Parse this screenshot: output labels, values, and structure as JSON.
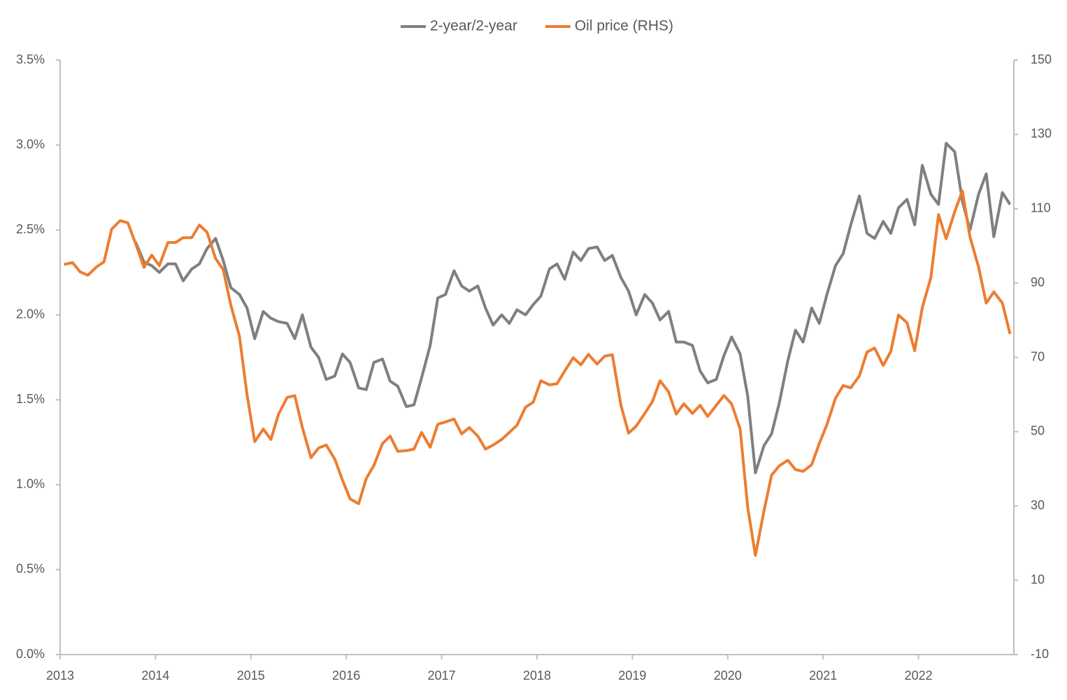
{
  "chart_data": {
    "type": "line",
    "x": [
      2013.04,
      2013.13,
      2013.21,
      2013.29,
      2013.38,
      2013.46,
      2013.54,
      2013.63,
      2013.71,
      2013.79,
      2013.88,
      2013.96,
      2014.04,
      2014.13,
      2014.21,
      2014.29,
      2014.38,
      2014.46,
      2014.54,
      2014.63,
      2014.71,
      2014.79,
      2014.88,
      2014.96,
      2015.04,
      2015.13,
      2015.21,
      2015.29,
      2015.38,
      2015.46,
      2015.54,
      2015.63,
      2015.71,
      2015.79,
      2015.88,
      2015.96,
      2016.04,
      2016.13,
      2016.21,
      2016.29,
      2016.38,
      2016.46,
      2016.54,
      2016.63,
      2016.71,
      2016.79,
      2016.88,
      2016.96,
      2017.04,
      2017.13,
      2017.21,
      2017.29,
      2017.38,
      2017.46,
      2017.54,
      2017.63,
      2017.71,
      2017.79,
      2017.88,
      2017.96,
      2018.04,
      2018.13,
      2018.21,
      2018.29,
      2018.38,
      2018.46,
      2018.54,
      2018.63,
      2018.71,
      2018.79,
      2018.88,
      2018.96,
      2019.04,
      2019.13,
      2019.21,
      2019.29,
      2019.38,
      2019.46,
      2019.54,
      2019.63,
      2019.71,
      2019.79,
      2019.88,
      2019.96,
      2020.04,
      2020.13,
      2020.21,
      2020.29,
      2020.38,
      2020.46,
      2020.54,
      2020.63,
      2020.71,
      2020.79,
      2020.88,
      2020.96,
      2021.04,
      2021.13,
      2021.21,
      2021.29,
      2021.38,
      2021.46,
      2021.54,
      2021.63,
      2021.71,
      2021.79,
      2021.88,
      2021.96,
      2022.04,
      2022.13,
      2022.21,
      2022.29,
      2022.38,
      2022.46,
      2022.54,
      2022.63,
      2022.71,
      2022.79,
      2022.88,
      2022.96
    ],
    "series": [
      {
        "name": "2-year/2-year",
        "color": "#7f7f7f",
        "values": [
          null,
          null,
          null,
          null,
          null,
          null,
          null,
          null,
          null,
          2.43,
          2.31,
          2.29,
          2.25,
          2.3,
          2.3,
          2.2,
          2.27,
          2.3,
          2.39,
          2.45,
          2.32,
          2.16,
          2.12,
          2.04,
          1.86,
          2.02,
          1.98,
          1.96,
          1.95,
          1.86,
          2.0,
          1.81,
          1.75,
          1.62,
          1.64,
          1.77,
          1.72,
          1.57,
          1.56,
          1.72,
          1.74,
          1.61,
          1.58,
          1.46,
          1.47,
          1.63,
          1.82,
          2.1,
          2.12,
          2.26,
          2.17,
          2.14,
          2.17,
          2.04,
          1.94,
          2.0,
          1.95,
          2.03,
          2.0,
          2.06,
          2.11,
          2.27,
          2.3,
          2.21,
          2.37,
          2.32,
          2.39,
          2.4,
          2.32,
          2.35,
          2.22,
          2.14,
          2.0,
          2.12,
          2.07,
          1.97,
          2.02,
          1.84,
          1.84,
          1.82,
          1.67,
          1.6,
          1.62,
          1.76,
          1.87,
          1.77,
          1.52,
          1.07,
          1.23,
          1.3,
          1.48,
          1.73,
          1.91,
          1.84,
          2.04,
          1.95,
          2.12,
          2.29,
          2.36,
          2.53,
          2.7,
          2.48,
          2.45,
          2.55,
          2.48,
          2.63,
          2.68,
          2.53,
          2.88,
          2.71,
          2.65,
          3.01,
          2.96,
          2.67,
          2.5,
          2.71,
          2.83,
          2.46,
          2.72,
          2.65
        ]
      },
      {
        "name": "Oil price (RHS)",
        "color": "#ed7d31",
        "axis": "y2",
        "values": [
          95.0,
          95.5,
          93.0,
          92.1,
          94.3,
          95.7,
          104.5,
          106.8,
          106.2,
          100.7,
          94.2,
          97.5,
          94.7,
          100.9,
          100.9,
          102.2,
          102.2,
          105.6,
          103.7,
          96.6,
          93.6,
          84.0,
          75.7,
          59.9,
          47.3,
          50.7,
          47.9,
          54.7,
          59.2,
          59.7,
          51.1,
          43.0,
          45.6,
          46.4,
          42.6,
          37.0,
          31.9,
          30.6,
          37.4,
          40.9,
          46.8,
          48.8,
          44.7,
          44.9,
          45.3,
          49.8,
          45.8,
          52.0,
          52.6,
          53.4,
          49.4,
          51.1,
          48.8,
          45.3,
          46.4,
          47.9,
          49.8,
          51.7,
          56.6,
          57.9,
          63.7,
          62.6,
          62.9,
          66.3,
          69.9,
          68.0,
          70.8,
          68.2,
          70.3,
          70.7,
          57.1,
          49.6,
          51.5,
          54.9,
          58.1,
          63.7,
          60.7,
          54.7,
          57.5,
          54.9,
          57.1,
          54.1,
          57.1,
          59.7,
          57.5,
          50.7,
          29.5,
          16.7,
          28.7,
          38.3,
          40.8,
          42.3,
          39.8,
          39.3,
          41.1,
          46.8,
          51.9,
          59.0,
          62.4,
          61.8,
          65.0,
          71.4,
          72.5,
          67.8,
          71.6,
          81.4,
          79.3,
          71.8,
          83.4,
          91.5,
          108.4,
          101.9,
          109.2,
          114.8,
          102.4,
          94.3,
          84.6,
          87.6,
          84.6,
          76.3
        ]
      }
    ],
    "xlim": [
      2013,
      2023
    ],
    "xticks": [
      2013,
      2014,
      2015,
      2016,
      2017,
      2018,
      2019,
      2020,
      2021,
      2022
    ],
    "ylim": [
      0,
      3.5
    ],
    "yticks": [
      {
        "value": 0,
        "label": "0.0%"
      },
      {
        "value": 0.5,
        "label": "0.5%"
      },
      {
        "value": 1,
        "label": "1.0%"
      },
      {
        "value": 1.5,
        "label": "1.5%"
      },
      {
        "value": 2,
        "label": "2.0%"
      },
      {
        "value": 2.5,
        "label": "2.5%"
      },
      {
        "value": 3,
        "label": "3.0%"
      },
      {
        "value": 3.5,
        "label": "3.5%"
      }
    ],
    "y2lim": [
      -10,
      150
    ],
    "y2ticks": [
      -10,
      10,
      30,
      50,
      70,
      90,
      110,
      130,
      150
    ],
    "legend": "top",
    "grid": false
  }
}
